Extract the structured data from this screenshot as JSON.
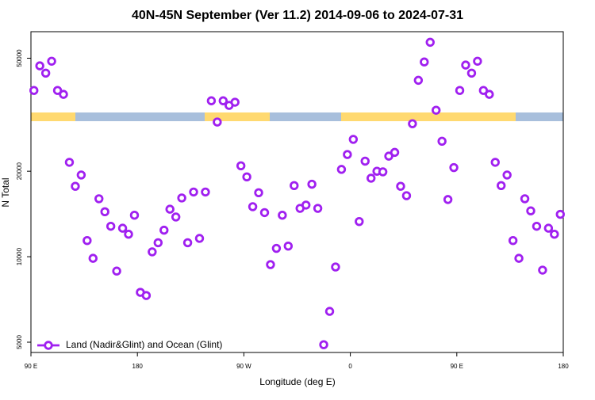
{
  "chart_data": {
    "type": "scatter",
    "title": "40N-45N September (Ver 11.2)   2014-09-06 to 2024-07-31",
    "x_label": "Longitude (deg E)",
    "y_label": "N Total",
    "log_y": true,
    "xlim": [
      90,
      540
    ],
    "ylim": [
      4600,
      62000
    ],
    "xticks": [
      {
        "value": 90,
        "label": "90 E"
      },
      180,
      {
        "value": 270,
        "label": "90 W"
      },
      {
        "value": 360,
        "label": "0"
      },
      {
        "value": 450,
        "label": "90 E"
      },
      {
        "value": 540,
        "label": "180"
      }
    ],
    "yticks": [
      5000,
      10000,
      20000,
      50000
    ],
    "legend_position": "bottom-left",
    "series": [
      {
        "name": "Land (Nadir&Glint) and Ocean (Glint)",
        "color": "#a020f0",
        "x": [
          92.5,
          97.5,
          102.5,
          107.5,
          112.5,
          117.5,
          122.5,
          127.5,
          132.5,
          137.5,
          142.5,
          147.5,
          152.5,
          157.5,
          162.5,
          167.5,
          172.5,
          177.5,
          182.5,
          187.5,
          192.5,
          197.5,
          202.5,
          207.5,
          212.5,
          217.5,
          222.5,
          227.5,
          232.5,
          237.5,
          242.5,
          247.5,
          252.5,
          257.5,
          262.5,
          267.5,
          272.5,
          277.5,
          282.5,
          287.5,
          292.5,
          297.5,
          302.5,
          307.5,
          312.5,
          317.5,
          322.5,
          327.5,
          332.5,
          337.5,
          342.5,
          347.5,
          352.5,
          357.5,
          362.5,
          367.5,
          372.5,
          377.5,
          382.5,
          387.5,
          392.5,
          397.5,
          402.5,
          407.5,
          412.5,
          417.5,
          422.5,
          427.5,
          432.5,
          437.5,
          442.5,
          447.5,
          452.5,
          457.5,
          462.5,
          467.5,
          472.5,
          477.5,
          482.5,
          487.5,
          492.5,
          497.5,
          502.5,
          507.5,
          512.5,
          517.5,
          522.5,
          527.5,
          532.5,
          537.5
        ],
        "values": [
          38500,
          47000,
          44300,
          48800,
          38500,
          37300,
          21500,
          17700,
          19400,
          11400,
          9870,
          16000,
          14400,
          12800,
          8900,
          12600,
          12000,
          14000,
          7490,
          7300,
          10400,
          11200,
          12400,
          14700,
          13800,
          16100,
          11200,
          16900,
          11600,
          16900,
          35400,
          29800,
          35400,
          34100,
          35000,
          20900,
          19100,
          15000,
          16800,
          14300,
          9380,
          10700,
          14000,
          10900,
          17800,
          14800,
          15200,
          18000,
          14800,
          4900,
          6420,
          9200,
          20300,
          22900,
          25900,
          13300,
          21700,
          18900,
          20000,
          19900,
          22600,
          23300,
          17700,
          16400,
          29400,
          41800,
          48500,
          56900,
          32800,
          25500,
          15900,
          20600,
          38500,
          47300,
          44300,
          48800,
          38500,
          37300,
          21500,
          17800,
          19400,
          11400,
          9870,
          16000,
          14500,
          12800,
          8970,
          12600,
          12000,
          14100
        ]
      }
    ]
  }
}
